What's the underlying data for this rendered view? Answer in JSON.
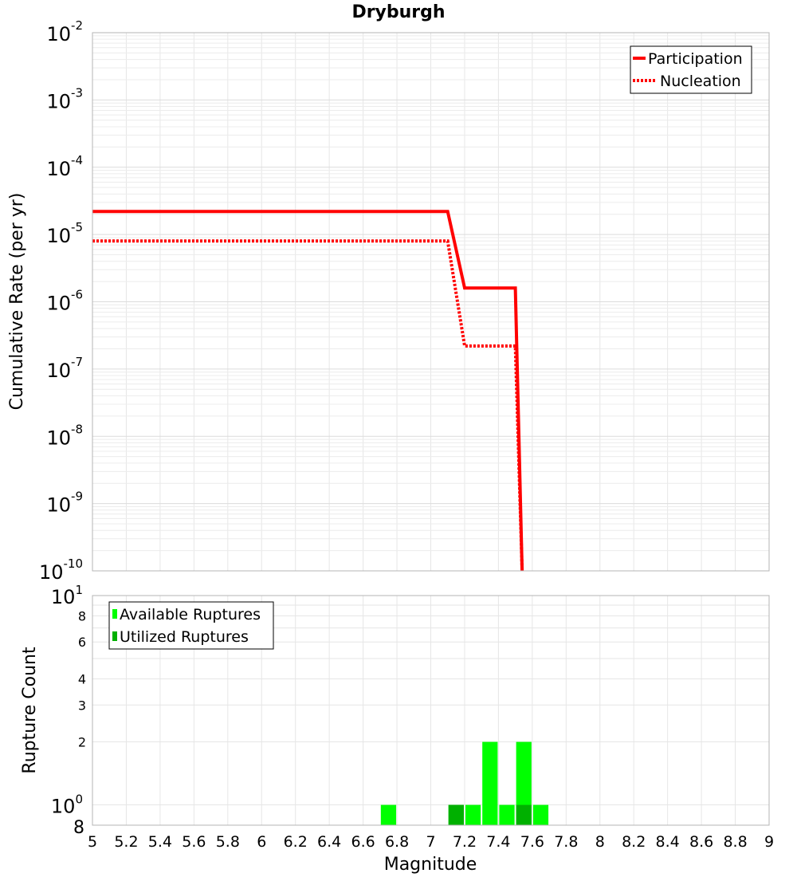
{
  "chart_data": [
    {
      "type": "line",
      "title": "Dryburgh",
      "xlabel": "",
      "ylabel": "Cumulative Rate (per yr)",
      "xlim": [
        5,
        9
      ],
      "ylim": [
        1e-10,
        0.01
      ],
      "yscale": "log",
      "grid": true,
      "y_tick_labels": [
        {
          "base": "10",
          "exp": "-10",
          "value": 1e-10
        },
        {
          "base": "10",
          "exp": "-9",
          "value": 1e-09
        },
        {
          "base": "10",
          "exp": "-8",
          "value": 1e-08
        },
        {
          "base": "10",
          "exp": "-7",
          "value": 1e-07
        },
        {
          "base": "10",
          "exp": "-6",
          "value": 1e-06
        },
        {
          "base": "10",
          "exp": "-5",
          "value": 1e-05
        },
        {
          "base": "10",
          "exp": "-4",
          "value": 0.0001
        },
        {
          "base": "10",
          "exp": "-3",
          "value": 0.001
        },
        {
          "base": "10",
          "exp": "-2",
          "value": 0.01
        }
      ],
      "legend": {
        "placement": "top-right",
        "entries": [
          "Participation",
          "Nucleation"
        ]
      },
      "series": [
        {
          "name": "Participation",
          "color": "#ff0000",
          "style": "solid",
          "x": [
            5.0,
            7.1,
            7.2,
            7.5,
            7.54
          ],
          "y": [
            2.2e-05,
            2.2e-05,
            1.6e-06,
            1.6e-06,
            1e-10
          ]
        },
        {
          "name": "Nucleation",
          "color": "#ff0000",
          "style": "dotted",
          "x": [
            5.0,
            7.1,
            7.2,
            7.5,
            7.54
          ],
          "y": [
            8e-06,
            8e-06,
            2.2e-07,
            2.2e-07,
            1e-10
          ]
        }
      ]
    },
    {
      "type": "bar",
      "title": "",
      "xlabel": "Magnitude",
      "ylabel": "Rupture Count",
      "xlim": [
        5,
        9
      ],
      "ylim": [
        0.8,
        10
      ],
      "yscale": "log",
      "grid": true,
      "x_tick_labels": [
        "5",
        "5.2",
        "5.4",
        "5.6",
        "5.8",
        "6",
        "6.2",
        "6.4",
        "6.6",
        "6.8",
        "7",
        "7.2",
        "7.4",
        "7.6",
        "7.8",
        "8",
        "8.2",
        "8.4",
        "8.6",
        "8.8",
        "9"
      ],
      "y_minor_tick_labels": [
        {
          "label": "2",
          "value": 2
        },
        {
          "label": "3",
          "value": 3
        },
        {
          "label": "4",
          "value": 4
        },
        {
          "label": "6",
          "value": 6
        },
        {
          "label": "8",
          "value": 8
        }
      ],
      "y_major_tick_labels": [
        {
          "base": "10",
          "exp": "0",
          "value": 1
        },
        {
          "base": "10",
          "exp": "1",
          "value": 10
        }
      ],
      "y_bottom_label": {
        "label": "8",
        "value": 0.8
      },
      "legend": {
        "placement": "top-left",
        "entries": [
          "Available Ruptures",
          "Utilized Ruptures"
        ]
      },
      "bin_width": 0.1,
      "series": [
        {
          "name": "Available Ruptures",
          "color": "#00ff00",
          "x": [
            6.75,
            7.15,
            7.25,
            7.35,
            7.45,
            7.55,
            7.65
          ],
          "values": [
            1,
            1,
            1,
            2,
            1,
            2,
            1
          ]
        },
        {
          "name": "Utilized Ruptures",
          "color": "#00b000",
          "x": [
            7.15,
            7.55
          ],
          "values": [
            1,
            1
          ]
        }
      ]
    }
  ]
}
